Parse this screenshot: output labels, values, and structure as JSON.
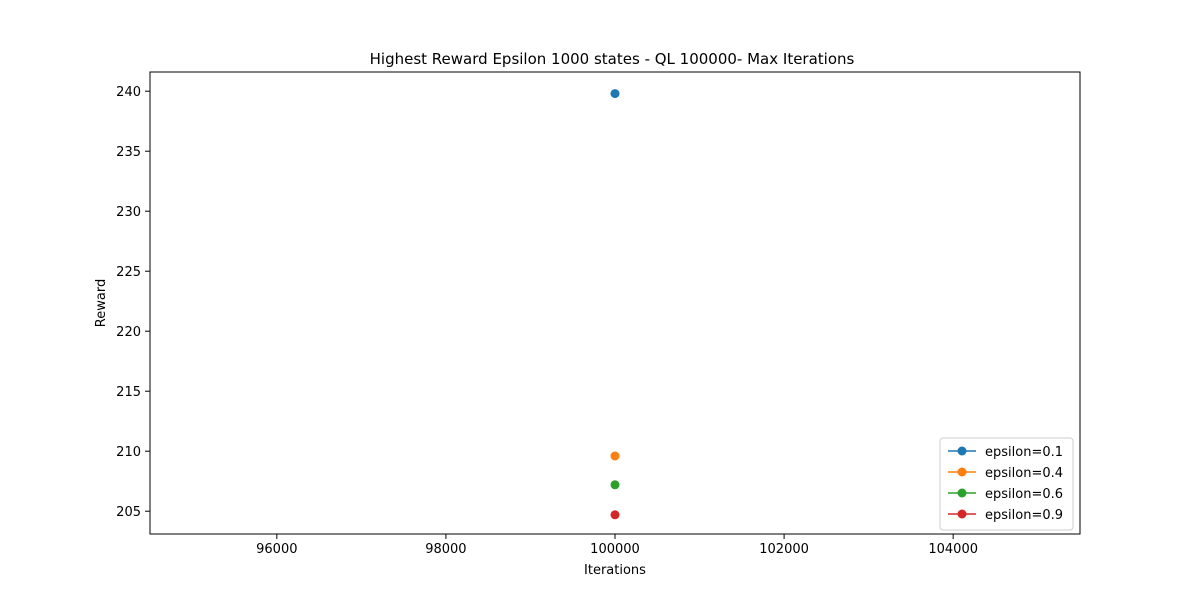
{
  "chart_data": {
    "type": "line",
    "title": "Highest Reward Epsilon 1000 states - QL 100000- Max Iterations",
    "xlabel": "Iterations",
    "ylabel": "Reward",
    "xlim": [
      94500,
      105500
    ],
    "ylim": [
      203.1,
      241.6
    ],
    "xticks": [
      96000,
      98000,
      100000,
      102000,
      104000
    ],
    "yticks": [
      205,
      210,
      215,
      220,
      225,
      230,
      235,
      240
    ],
    "grid": false,
    "legend_position": "bottom-right",
    "series": [
      {
        "name": "epsilon=0.1",
        "color": "#1f77b4",
        "x": [
          100000
        ],
        "y": [
          239.8
        ]
      },
      {
        "name": "epsilon=0.4",
        "color": "#ff7f0e",
        "x": [
          100000
        ],
        "y": [
          209.6
        ]
      },
      {
        "name": "epsilon=0.6",
        "color": "#2ca02c",
        "x": [
          100000
        ],
        "y": [
          207.2
        ]
      },
      {
        "name": "epsilon=0.9",
        "color": "#d62728",
        "x": [
          100000
        ],
        "y": [
          204.7
        ]
      }
    ]
  }
}
